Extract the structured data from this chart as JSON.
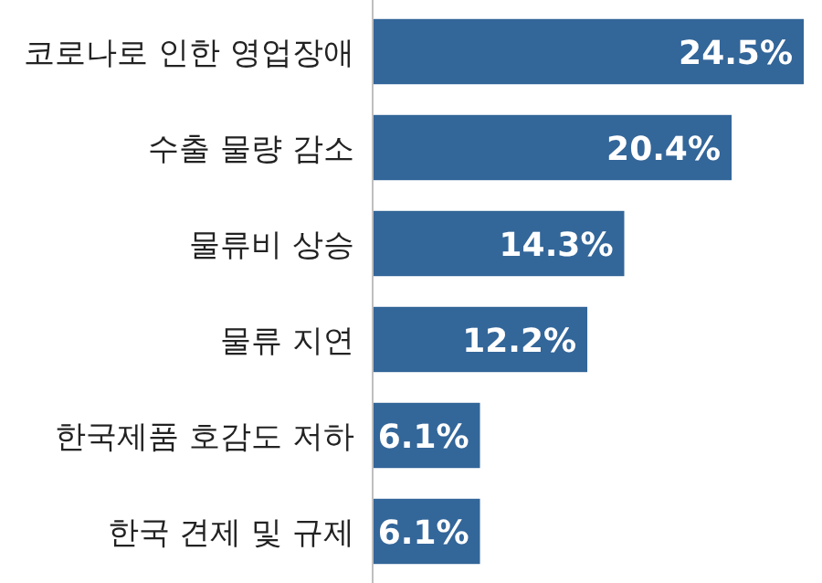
{
  "chart_data": {
    "type": "bar",
    "orientation": "horizontal",
    "categories": [
      "코로나로 인한 영업장애",
      "수출 물량 감소",
      "물류비 상승",
      "물류 지연",
      "한국제품 호감도 저하",
      "한국 견제 및 규제"
    ],
    "values": [
      24.5,
      20.4,
      14.3,
      12.2,
      6.1,
      6.1
    ],
    "value_labels": [
      "24.5%",
      "20.4%",
      "14.3%",
      "12.2%",
      "6.1%",
      "6.1%"
    ],
    "color": "#336699"
  }
}
